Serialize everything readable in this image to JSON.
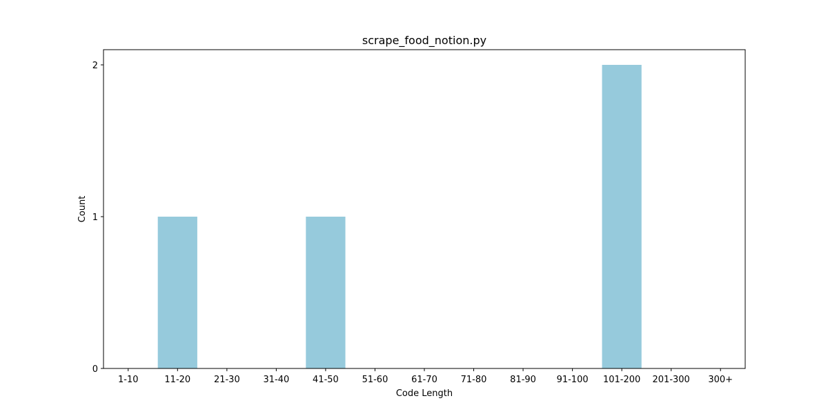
{
  "chart_data": {
    "type": "bar",
    "title": "scrape_food_notion.py",
    "xlabel": "Code Length",
    "ylabel": "Count",
    "categories": [
      "1-10",
      "11-20",
      "21-30",
      "31-40",
      "41-50",
      "51-60",
      "61-70",
      "71-80",
      "81-90",
      "91-100",
      "101-200",
      "201-300",
      "300+"
    ],
    "values": [
      0,
      1,
      0,
      0,
      1,
      0,
      0,
      0,
      0,
      0,
      2,
      0,
      0
    ],
    "ylim": [
      0,
      2.1
    ],
    "yticks": [
      0,
      1,
      2
    ],
    "grid": false,
    "bar_color": "#96cadc"
  }
}
